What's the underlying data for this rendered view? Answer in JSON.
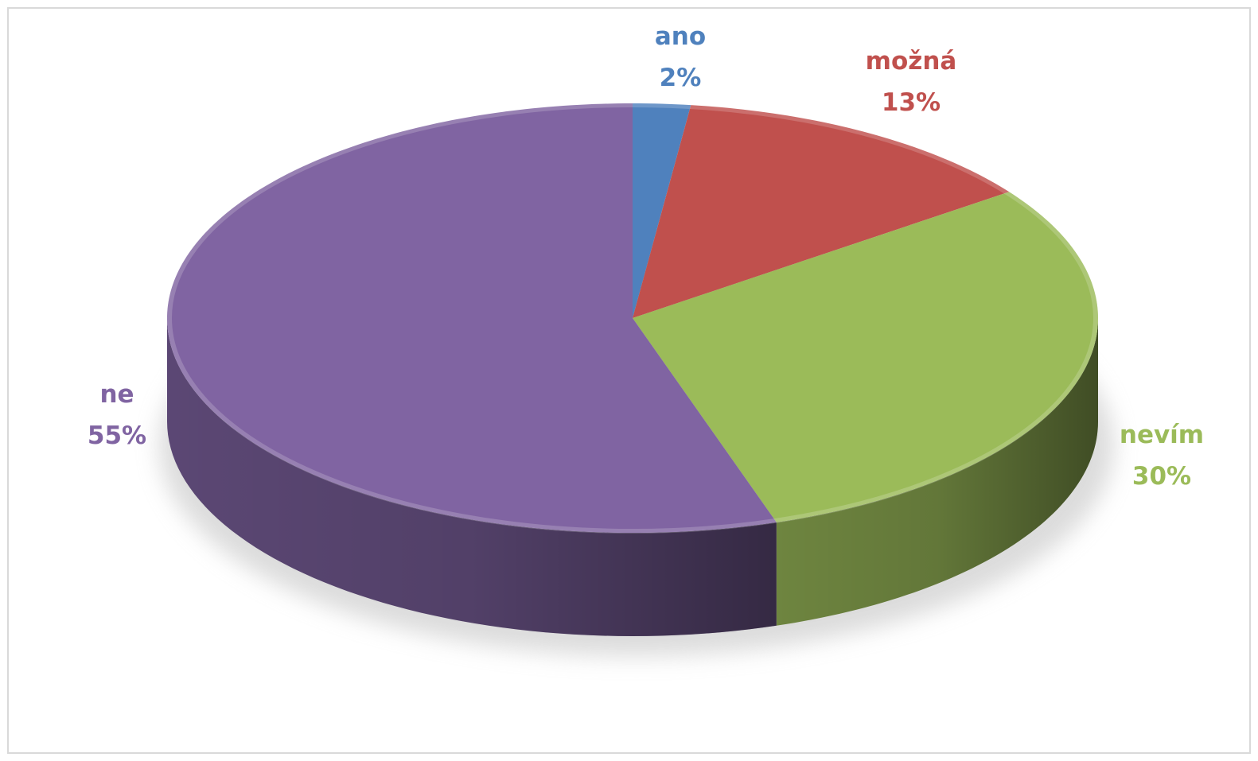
{
  "chart_data": {
    "type": "pie",
    "categories": [
      "ano",
      "možná",
      "nevím",
      "ne"
    ],
    "values": [
      2,
      13,
      30,
      55
    ],
    "value_labels": [
      "2%",
      "13%",
      "30%",
      "55%"
    ],
    "colors": [
      "#4f81bd",
      "#c0504d",
      "#9bbb59",
      "#8064a2"
    ]
  }
}
